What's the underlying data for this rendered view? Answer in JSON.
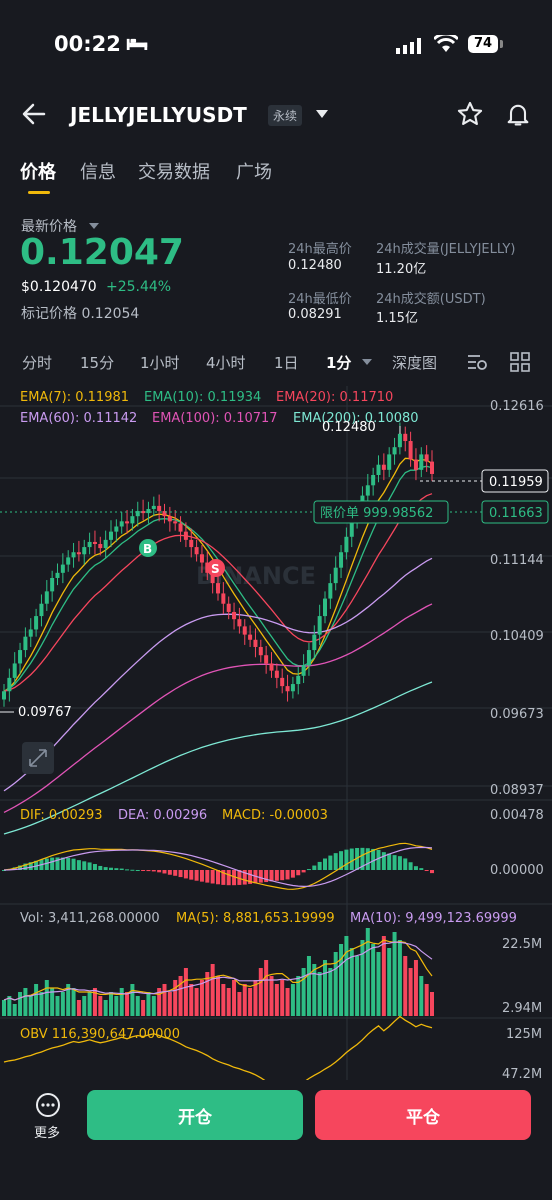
{
  "status_bar": {
    "time": "00:22",
    "battery": "74"
  },
  "header": {
    "pair": "JELLYJELLYUSDT",
    "badge": "永续"
  },
  "tabs": [
    {
      "label": "价格"
    },
    {
      "label": "信息"
    },
    {
      "label": "交易数据"
    },
    {
      "label": "广场"
    }
  ],
  "price": {
    "label": "最新价格",
    "last": "0.12047",
    "usd": "$0.120470",
    "change": "+25.44%",
    "mark": "标记价格 0.12054"
  },
  "stats": {
    "high_label": "24h最高价",
    "high": "0.12480",
    "vol_label": "24h成交量(JELLYJELLY)",
    "vol": "11.20亿",
    "low_label": "24h最低价",
    "low": "0.08291",
    "turnover_label": "24h成交额(USDT)",
    "turnover": "1.15亿"
  },
  "intervals": [
    {
      "label": "分时"
    },
    {
      "label": "15分"
    },
    {
      "label": "1小时"
    },
    {
      "label": "4小时"
    },
    {
      "label": "1日"
    },
    {
      "label": "1分"
    },
    {
      "label": "深度图"
    }
  ],
  "chart_data": {
    "type": "candlestick",
    "ema_legend": [
      {
        "label": "EMA(7): 0.11981",
        "color": "#f0b90b"
      },
      {
        "label": "EMA(10): 0.11934",
        "color": "#2ebd85"
      },
      {
        "label": "EMA(20): 0.11710",
        "color": "#f6465d"
      },
      {
        "label": "EMA(60): 0.11142",
        "color": "#c99bf0"
      },
      {
        "label": "EMA(100): 0.10717",
        "color": "#e054b6"
      },
      {
        "label": "EMA(200): 0.10080",
        "color": "#7ee8d4"
      }
    ],
    "y_ticks": [
      "0.12616",
      "0.11144",
      "0.10409",
      "0.09673",
      "0.08937"
    ],
    "high_label": "0.12480",
    "low_label": "0.09767",
    "current_price_tag": "0.11959",
    "limit_order_label": "限价单 999.98562",
    "limit_order_price": "0.11663",
    "macd_legend": [
      {
        "label": "DIF: 0.00293",
        "color": "#f0b90b"
      },
      {
        "label": "DEA: 0.00296",
        "color": "#c99bf0"
      },
      {
        "label": "MACD: -0.00003",
        "color": "#f0b90b"
      }
    ],
    "macd_ticks": [
      "0.00478",
      "0.00000"
    ],
    "vol_legend": [
      {
        "label": "Vol: 3,411,268.00000",
        "color": "#b7bdc6"
      },
      {
        "label": "MA(5): 8,881,653.19999",
        "color": "#f0b90b"
      },
      {
        "label": "MA(10): 9,499,123.69999",
        "color": "#c99bf0"
      }
    ],
    "vol_ticks": [
      "22.5M",
      "2.94M"
    ],
    "obv_legend": "OBV 116,390,647.00000",
    "obv_ticks": [
      "125M",
      "47.2M"
    ],
    "watermark": "BINANCE",
    "buy_marker": "B",
    "sell_marker": "S",
    "closes": [
      0.0985,
      0.0998,
      0.1012,
      0.1025,
      0.1038,
      0.1045,
      0.1058,
      0.107,
      0.1082,
      0.1095,
      0.11,
      0.1108,
      0.1115,
      0.112,
      0.1118,
      0.1125,
      0.113,
      0.1128,
      0.1124,
      0.1132,
      0.114,
      0.1145,
      0.115,
      0.1148,
      0.1155,
      0.116,
      0.1158,
      0.1162,
      0.1165,
      0.116,
      0.1155,
      0.115,
      0.1148,
      0.114,
      0.1132,
      0.1125,
      0.1118,
      0.111,
      0.11,
      0.109,
      0.108,
      0.107,
      0.1062,
      0.1055,
      0.1048,
      0.104,
      0.1035,
      0.1028,
      0.102,
      0.1012,
      0.1005,
      0.0998,
      0.099,
      0.0985,
      0.0992,
      0.1,
      0.101,
      0.1025,
      0.104,
      0.1058,
      0.1075,
      0.109,
      0.1105,
      0.112,
      0.1135,
      0.115,
      0.1162,
      0.1175,
      0.1185,
      0.1195,
      0.1205,
      0.12,
      0.1215,
      0.1222,
      0.1235,
      0.1228,
      0.121,
      0.12,
      0.1215,
      0.1208,
      0.1196
    ],
    "volumes": [
      4,
      5,
      3,
      6,
      7,
      5,
      8,
      6,
      9,
      7,
      5,
      6,
      8,
      7,
      4,
      5,
      6,
      7,
      5,
      4,
      6,
      5,
      7,
      6,
      8,
      5,
      4,
      6,
      5,
      7,
      8,
      6,
      9,
      10,
      12,
      8,
      7,
      9,
      11,
      13,
      10,
      8,
      7,
      9,
      6,
      8,
      7,
      9,
      12,
      14,
      10,
      8,
      9,
      7,
      8,
      10,
      12,
      15,
      13,
      11,
      14,
      12,
      16,
      18,
      20,
      17,
      15,
      19,
      22,
      18,
      16,
      20,
      17,
      21,
      19,
      15,
      12,
      14,
      10,
      8,
      6
    ]
  },
  "bottom_bar": {
    "more_label": "更多",
    "open_label": "开仓",
    "close_label": "平仓"
  }
}
